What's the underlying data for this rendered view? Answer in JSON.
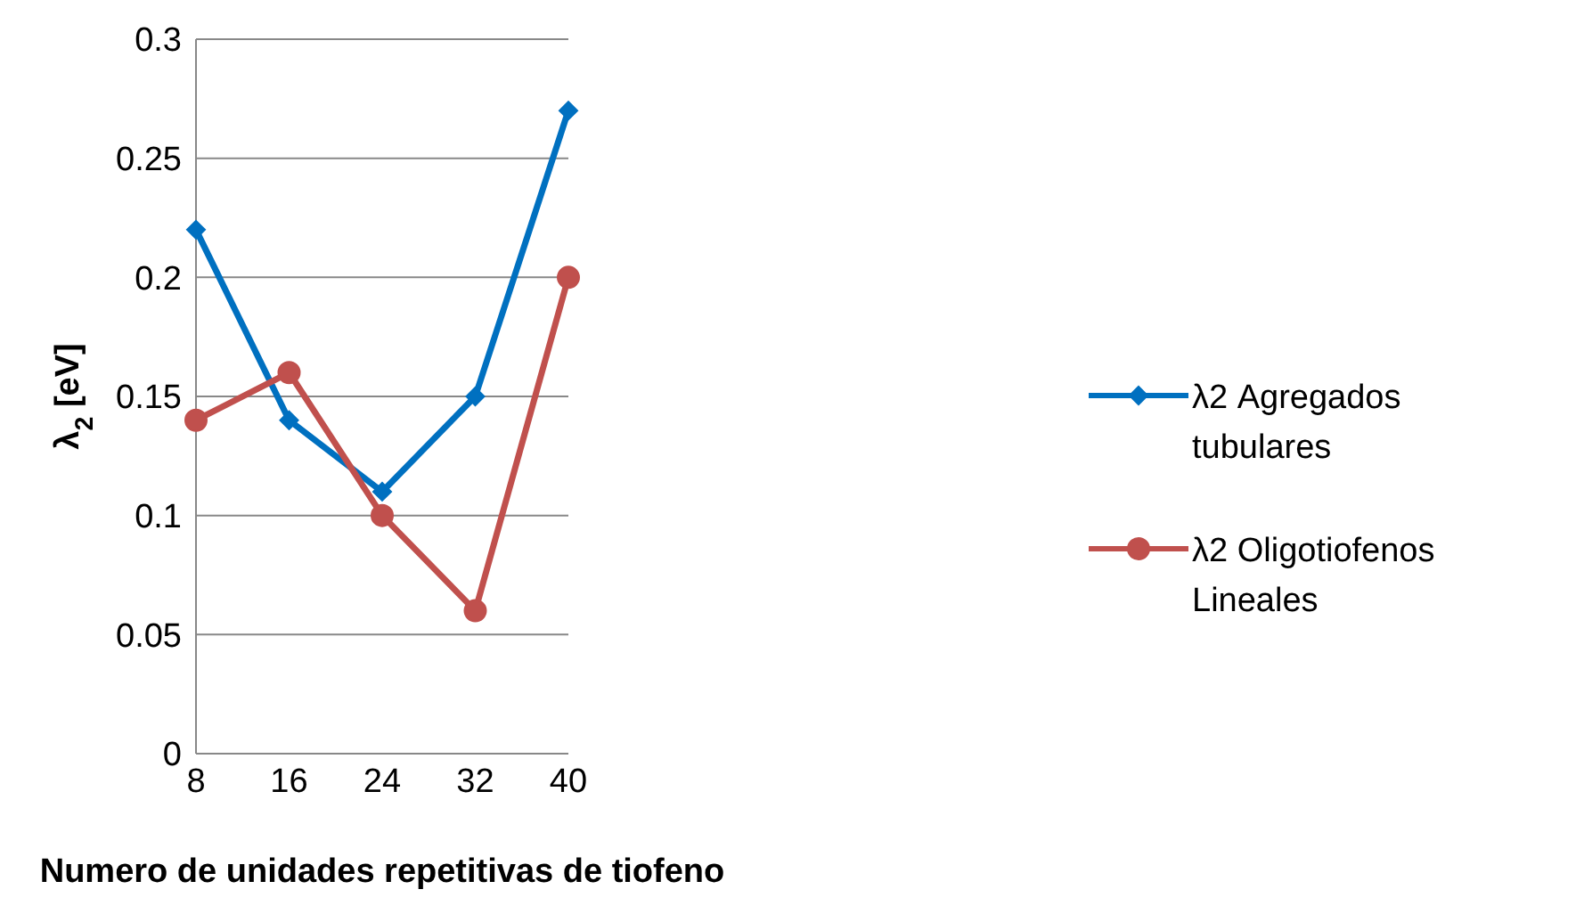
{
  "chart_data": {
    "type": "line",
    "xlabel": "Numero de unidades repetitivas de tiofeno",
    "ylabel": "λ$_{2}$ [eV]",
    "categories": [
      "8",
      "16",
      "24",
      "32",
      "40"
    ],
    "series": [
      {
        "name": "λ2 Agregados tubulares",
        "color": "#0070c0",
        "marker": "diamond",
        "values": [
          0.22,
          0.14,
          0.11,
          0.15,
          0.27
        ]
      },
      {
        "name": "λ2 Oligotiofenos Lineales",
        "color": "#c0504d",
        "marker": "circle",
        "values": [
          0.14,
          0.16,
          0.1,
          0.06,
          0.2
        ]
      }
    ],
    "ylim": [
      0,
      0.3
    ],
    "yticks": [
      0,
      0.05,
      0.1,
      0.15,
      0.2,
      0.25,
      0.3
    ],
    "grid": "y",
    "legend": "right",
    "line_style": "solid"
  }
}
